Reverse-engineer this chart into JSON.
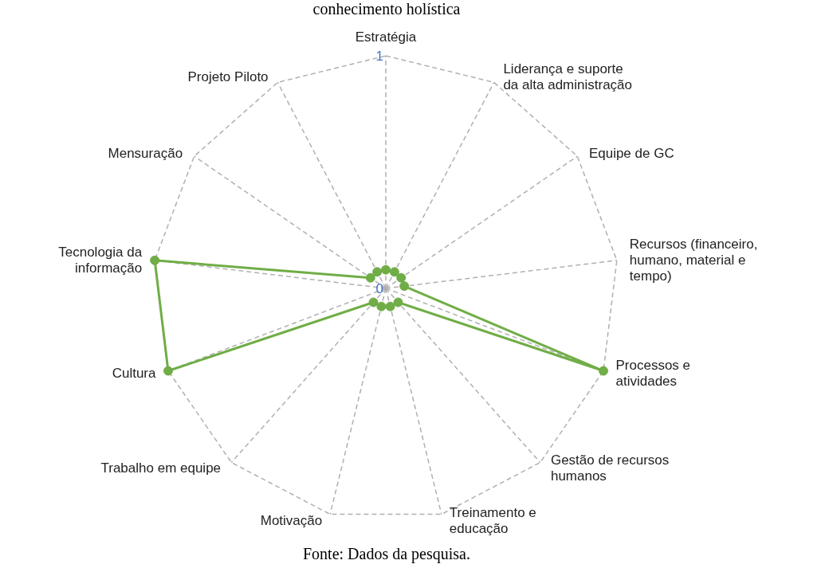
{
  "chart_data": {
    "type": "radar",
    "title": "conhecimento holística",
    "categories": [
      "Estratégia",
      "Liderança e suporte da alta administração",
      "Equipe de GC",
      "Recursos (financeiro, humano, material e tempo)",
      "Processos e atividades",
      "Gestão de recursos humanos",
      "Treinamento e educação",
      "Motivação",
      "Trabalho em equipe",
      "Cultura",
      "Tecnologia da informação",
      "Mensuração",
      "Projeto Piloto"
    ],
    "series": [
      {
        "color": "#70ad47",
        "values": [
          0.08,
          0.08,
          0.08,
          0.08,
          1,
          0.08,
          0.08,
          0.08,
          0.08,
          1,
          1,
          0.08,
          0.08
        ]
      }
    ],
    "ylim": [
      0,
      1
    ],
    "yticks": [
      0,
      1
    ],
    "grid": true,
    "marker": "circle",
    "annotations": [
      "Fonte: Dados da pesquisa."
    ]
  }
}
